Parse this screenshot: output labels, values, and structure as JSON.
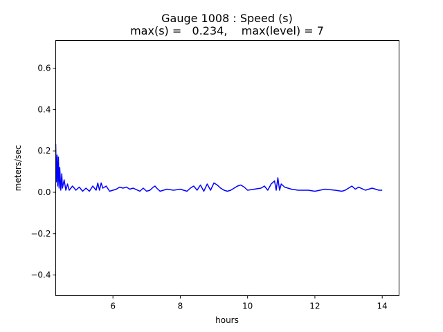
{
  "chart_data": {
    "type": "line",
    "title_line1": "Gauge 1008 : Speed (s)",
    "title_line2": "max(s) =   0.234,    max(level) = 7",
    "xlabel": "hours",
    "ylabel": "meters/sec",
    "xlim": [
      4.3,
      14.5
    ],
    "ylim": [
      -0.5,
      0.734
    ],
    "xticks": [
      6,
      8,
      10,
      12,
      14
    ],
    "xtick_labels": [
      "6",
      "8",
      "10",
      "12",
      "14"
    ],
    "yticks": [
      -0.4,
      -0.2,
      0.0,
      0.2,
      0.4,
      0.6
    ],
    "ytick_labels": [
      "−0.4",
      "−0.2",
      "0.0",
      "0.2",
      "0.4",
      "0.6"
    ],
    "grid": false,
    "series": [
      {
        "color": "#0000ff",
        "x": [
          4.3,
          4.32,
          4.34,
          4.36,
          4.38,
          4.4,
          4.42,
          4.45,
          4.48,
          4.5,
          4.55,
          4.6,
          4.65,
          4.7,
          4.8,
          4.9,
          5.0,
          5.1,
          5.2,
          5.3,
          5.4,
          5.5,
          5.55,
          5.6,
          5.65,
          5.7,
          5.8,
          5.9,
          6.0,
          6.1,
          6.2,
          6.3,
          6.4,
          6.5,
          6.6,
          6.8,
          6.9,
          7.0,
          7.1,
          7.2,
          7.25,
          7.3,
          7.4,
          7.6,
          7.8,
          8.0,
          8.2,
          8.3,
          8.4,
          8.5,
          8.6,
          8.7,
          8.8,
          8.9,
          9.0,
          9.1,
          9.2,
          9.3,
          9.4,
          9.5,
          9.6,
          9.7,
          9.8,
          9.9,
          10.0,
          10.2,
          10.4,
          10.5,
          10.6,
          10.7,
          10.8,
          10.85,
          10.9,
          10.95,
          11.0,
          11.1,
          11.2,
          11.3,
          11.5,
          11.8,
          12.0,
          12.3,
          12.6,
          12.8,
          12.9,
          13.0,
          13.1,
          13.2,
          13.3,
          13.5,
          13.7,
          13.9,
          14.0
        ],
        "y": [
          0.234,
          0.05,
          0.18,
          0.03,
          0.17,
          0.02,
          0.12,
          0.01,
          0.09,
          0.02,
          0.06,
          0.01,
          0.04,
          0.01,
          0.03,
          0.01,
          0.025,
          0.005,
          0.02,
          0.005,
          0.03,
          0.01,
          0.045,
          0.01,
          0.045,
          0.02,
          0.03,
          0.005,
          0.01,
          0.015,
          0.025,
          0.02,
          0.025,
          0.015,
          0.02,
          0.005,
          0.02,
          0.005,
          0.01,
          0.025,
          0.03,
          0.02,
          0.005,
          0.015,
          0.01,
          0.015,
          0.005,
          0.02,
          0.03,
          0.01,
          0.035,
          0.005,
          0.04,
          0.01,
          0.045,
          0.035,
          0.02,
          0.01,
          0.005,
          0.01,
          0.02,
          0.03,
          0.035,
          0.025,
          0.01,
          0.015,
          0.02,
          0.03,
          0.01,
          0.04,
          0.055,
          0.01,
          0.07,
          0.01,
          0.04,
          0.025,
          0.02,
          0.015,
          0.01,
          0.01,
          0.005,
          0.015,
          0.01,
          0.005,
          0.01,
          0.02,
          0.03,
          0.015,
          0.025,
          0.01,
          0.02,
          0.01,
          0.01
        ]
      }
    ]
  }
}
